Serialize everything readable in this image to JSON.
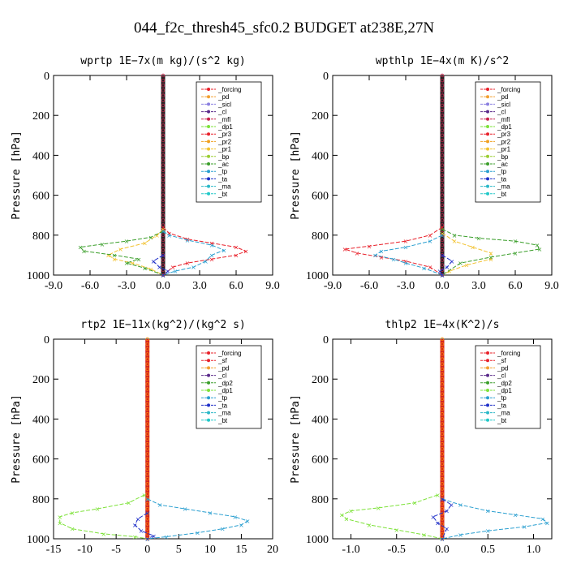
{
  "figure": {
    "title": "044_f2c_thresh45_sfc0.2  BUDGET at238E,27N"
  },
  "chart_data": [
    {
      "type": "line",
      "title": "wprtp  1E−7x(m kg)/(s^2 kg)",
      "ylabel": "Pressure [hPa]",
      "xlim": [
        -9,
        9
      ],
      "ylim": [
        1000,
        0
      ],
      "xticks": [
        "-9.0",
        "-6.0",
        "-3.0",
        "0.0",
        "3.0",
        "6.0",
        "9.0"
      ],
      "xtick_values": [
        -9,
        -6,
        -3,
        0,
        3,
        6,
        9
      ],
      "yticks": [
        "0",
        "200",
        "400",
        "600",
        "800",
        "1000"
      ],
      "ytick_values": [
        0,
        200,
        400,
        600,
        800,
        1000
      ],
      "legend": [
        "_forcing",
        "_pd",
        "_sicl",
        "_cl",
        "_mfl",
        "_dp1",
        "_pr3",
        "_pr2",
        "_pr1",
        "_bp",
        "_ac",
        "_tp",
        "_ta",
        "_ma",
        "_bt"
      ],
      "series": [
        {
          "name": "_pr3",
          "color": "#e8202a",
          "points": [
            [
              0,
              760
            ],
            [
              0.5,
              790
            ],
            [
              2,
              820
            ],
            [
              4,
              840
            ],
            [
              6,
              860
            ],
            [
              6.8,
              880
            ],
            [
              6,
              900
            ],
            [
              4,
              920
            ],
            [
              2,
              940
            ],
            [
              0.8,
              960
            ],
            [
              0,
              1000
            ]
          ]
        },
        {
          "name": "_pr1",
          "color": "#f2c230",
          "points": [
            [
              0,
              770
            ],
            [
              -0.5,
              800
            ],
            [
              -1.5,
              840
            ],
            [
              -3.5,
              870
            ],
            [
              -4.5,
              900
            ],
            [
              -4,
              920
            ],
            [
              -2.5,
              940
            ],
            [
              -1,
              970
            ],
            [
              0,
              1000
            ]
          ]
        },
        {
          "name": "_ac",
          "color": "#3a9e2a",
          "points": [
            [
              0,
              780
            ],
            [
              -1,
              810
            ],
            [
              -3,
              830
            ],
            [
              -5,
              845
            ],
            [
              -6.8,
              860
            ],
            [
              -6.5,
              880
            ],
            [
              -4,
              900
            ],
            [
              -2,
              920
            ],
            [
              -3,
              940
            ],
            [
              -1.5,
              965
            ],
            [
              0,
              1000
            ]
          ]
        },
        {
          "name": "_tp",
          "color": "#2a9fd0",
          "points": [
            [
              0,
              780
            ],
            [
              0.5,
              800
            ],
            [
              2,
              825
            ],
            [
              4,
              850
            ],
            [
              5,
              875
            ],
            [
              4,
              900
            ],
            [
              3.5,
              930
            ],
            [
              2.5,
              960
            ],
            [
              1,
              980
            ],
            [
              0,
              1000
            ]
          ]
        },
        {
          "name": "_ta",
          "color": "#1e2fc8",
          "points": [
            [
              0,
              900
            ],
            [
              -0.8,
              930
            ],
            [
              -0.3,
              960
            ],
            [
              0.4,
              980
            ],
            [
              0,
              1000
            ]
          ]
        }
      ]
    },
    {
      "type": "line",
      "title": "wpthlp  1E−4x(m K)/s^2",
      "ylabel": "Pressure [hPa]",
      "xlim": [
        -9,
        9
      ],
      "ylim": [
        1000,
        0
      ],
      "xticks": [
        "-9.0",
        "-6.0",
        "-3.0",
        "0.0",
        "3.0",
        "6.0",
        "9.0"
      ],
      "xtick_values": [
        -9,
        -6,
        -3,
        0,
        3,
        6,
        9
      ],
      "yticks": [
        "0",
        "200",
        "400",
        "600",
        "800",
        "1000"
      ],
      "ytick_values": [
        0,
        200,
        400,
        600,
        800,
        1000
      ],
      "legend": [
        "_forcing",
        "_pd",
        "_sicl",
        "_cl",
        "_mfl",
        "_dp1",
        "_pr3",
        "_pr2",
        "_pr1",
        "_bp",
        "_ac",
        "_tp",
        "_ta",
        "_ma",
        "_bt"
      ],
      "series": [
        {
          "name": "_pr3",
          "color": "#e8202a",
          "points": [
            [
              0,
              760
            ],
            [
              -1,
              800
            ],
            [
              -3,
              830
            ],
            [
              -6,
              855
            ],
            [
              -8,
              870
            ],
            [
              -7,
              890
            ],
            [
              -5,
              910
            ],
            [
              -3,
              930
            ],
            [
              -1,
              960
            ],
            [
              0,
              1000
            ]
          ]
        },
        {
          "name": "_pr1",
          "color": "#f2c230",
          "points": [
            [
              0,
              790
            ],
            [
              1,
              830
            ],
            [
              2.5,
              860
            ],
            [
              4,
              890
            ],
            [
              4,
              920
            ],
            [
              2,
              950
            ],
            [
              0.6,
              980
            ],
            [
              0,
              1000
            ]
          ]
        },
        {
          "name": "_ac",
          "color": "#3a9e2a",
          "points": [
            [
              0,
              770
            ],
            [
              1,
              800
            ],
            [
              3,
              815
            ],
            [
              6,
              830
            ],
            [
              7.8,
              850
            ],
            [
              8,
              870
            ],
            [
              6,
              890
            ],
            [
              4,
              910
            ],
            [
              1.5,
              940
            ],
            [
              0,
              1000
            ]
          ]
        },
        {
          "name": "_tp",
          "color": "#2a9fd0",
          "points": [
            [
              0,
              800
            ],
            [
              -1,
              830
            ],
            [
              -3,
              860
            ],
            [
              -5,
              880
            ],
            [
              -5.5,
              900
            ],
            [
              -4,
              920
            ],
            [
              -3,
              940
            ],
            [
              -1.5,
              965
            ],
            [
              0,
              1000
            ]
          ]
        },
        {
          "name": "_ta",
          "color": "#1e2fc8",
          "points": [
            [
              0,
              900
            ],
            [
              0.8,
              930
            ],
            [
              0.4,
              960
            ],
            [
              -0.2,
              980
            ],
            [
              0,
              1000
            ]
          ]
        }
      ]
    },
    {
      "type": "line",
      "title": "rtp2  1E−11x(kg^2)/(kg^2 s)",
      "ylabel": "Pressure [hPa]",
      "xlim": [
        -15,
        20
      ],
      "ylim": [
        1000,
        0
      ],
      "xticks": [
        "-15",
        "-10",
        "-5",
        "0",
        "5",
        "10",
        "15",
        "20"
      ],
      "xtick_values": [
        -15,
        -10,
        -5,
        0,
        5,
        10,
        15,
        20
      ],
      "yticks": [
        "0",
        "200",
        "400",
        "600",
        "800",
        "1000"
      ],
      "ytick_values": [
        0,
        200,
        400,
        600,
        800,
        1000
      ],
      "legend": [
        "_forcing",
        "_sf",
        "_pd",
        "_cl",
        "_dp2",
        "_dp1",
        "_tp",
        "_ta",
        "_ma",
        "_bt"
      ],
      "series": [
        {
          "name": "_dp1",
          "color": "#7ee23a",
          "points": [
            [
              -0.5,
              780
            ],
            [
              -3,
              820
            ],
            [
              -8,
              850
            ],
            [
              -12,
              870
            ],
            [
              -14,
              890
            ],
            [
              -14,
              920
            ],
            [
              -12,
              950
            ],
            [
              -7,
              975
            ],
            [
              -2,
              990
            ],
            [
              0,
              1000
            ]
          ]
        },
        {
          "name": "_tp",
          "color": "#2a9fd0",
          "points": [
            [
              0,
              800
            ],
            [
              2,
              830
            ],
            [
              6,
              850
            ],
            [
              10,
              870
            ],
            [
              14,
              890
            ],
            [
              16,
              910
            ],
            [
              15,
              930
            ],
            [
              12,
              950
            ],
            [
              8,
              970
            ],
            [
              3,
              990
            ],
            [
              0,
              1000
            ]
          ]
        },
        {
          "name": "_ta",
          "color": "#1e2fc8",
          "points": [
            [
              0,
              870
            ],
            [
              -1.5,
              900
            ],
            [
              -2,
              930
            ],
            [
              -1,
              960
            ],
            [
              1,
              985
            ],
            [
              0,
              1000
            ]
          ]
        }
      ]
    },
    {
      "type": "line",
      "title": "thlp2  1E−4x(K^2)/s",
      "ylabel": "Pressure [hPa]",
      "xlim": [
        -1.2,
        1.2
      ],
      "ylim": [
        1000,
        0
      ],
      "xticks": [
        "-1.0",
        "-0.5",
        "0.0",
        "0.5",
        "1.0"
      ],
      "xtick_values": [
        -1,
        -0.5,
        0,
        0.5,
        1
      ],
      "yticks": [
        "0",
        "200",
        "400",
        "600",
        "800",
        "1000"
      ],
      "ytick_values": [
        0,
        200,
        400,
        600,
        800,
        1000
      ],
      "legend": [
        "_forcing",
        "_sf",
        "_pd",
        "_cl",
        "_dp2",
        "_dp1",
        "_tp",
        "_ta",
        "_ma",
        "_bt"
      ],
      "series": [
        {
          "name": "_dp1",
          "color": "#7ee23a",
          "points": [
            [
              -0.05,
              780
            ],
            [
              -0.3,
              820
            ],
            [
              -0.7,
              845
            ],
            [
              -1,
              860
            ],
            [
              -1.1,
              880
            ],
            [
              -1.05,
              900
            ],
            [
              -0.8,
              930
            ],
            [
              -0.5,
              955
            ],
            [
              -0.2,
              980
            ],
            [
              0,
              1000
            ]
          ]
        },
        {
          "name": "_tp",
          "color": "#2a9fd0",
          "points": [
            [
              0,
              800
            ],
            [
              0.2,
              830
            ],
            [
              0.5,
              860
            ],
            [
              0.8,
              880
            ],
            [
              1.1,
              900
            ],
            [
              1.15,
              920
            ],
            [
              0.9,
              940
            ],
            [
              0.5,
              960
            ],
            [
              0.2,
              980
            ],
            [
              0,
              1000
            ]
          ]
        },
        {
          "name": "_ta",
          "color": "#1e2fc8",
          "points": [
            [
              0,
              800
            ],
            [
              0.1,
              830
            ],
            [
              0.05,
              860
            ],
            [
              -0.1,
              890
            ],
            [
              -0.05,
              920
            ],
            [
              0.05,
              950
            ],
            [
              0,
              1000
            ]
          ]
        }
      ]
    }
  ],
  "styles": {
    "series_colors": {
      "_forcing": "#e8202a",
      "_pd": "#f2a030",
      "_sicl": "#8a7fe0",
      "_cl": "#5a2a8a",
      "_mfl": "#c8204a",
      "_dp1": "#7ee23a",
      "_pr3": "#e8202a",
      "_pr2": "#f0a020",
      "_pr1": "#f2c230",
      "_bp": "#9acd32",
      "_ac": "#3a9e2a",
      "_tp": "#2a9fd0",
      "_ta": "#1e2fc8",
      "_ma": "#2ab8c8",
      "_bt": "#20c8c8",
      "_sf": "#e8202a",
      "_dp2": "#3a9e2a"
    }
  }
}
